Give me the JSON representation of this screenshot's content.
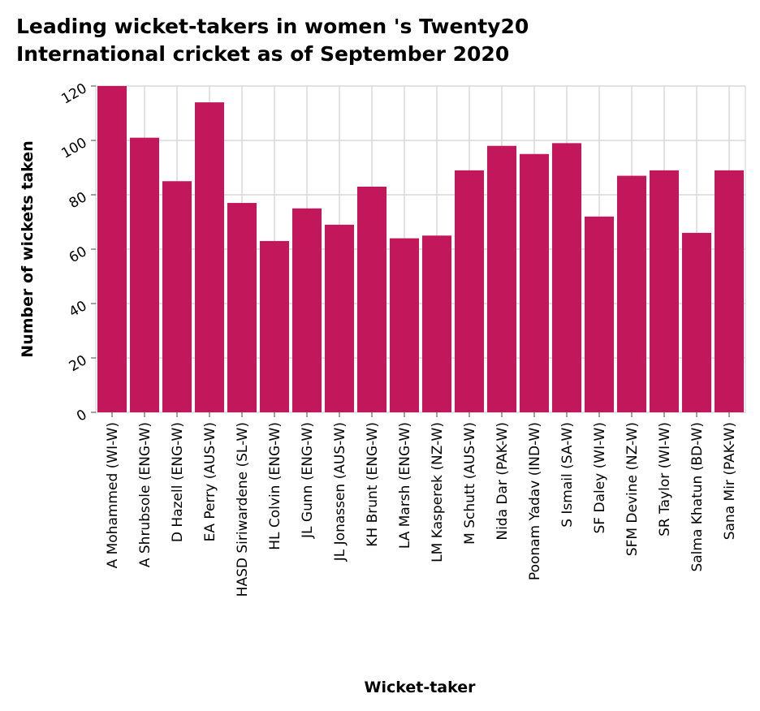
{
  "chart_data": {
    "type": "bar",
    "title_lines": [
      "Leading wicket-takers in women 's Twenty20",
      "International cricket as of September 2020"
    ],
    "xlabel": "Wicket-taker",
    "ylabel": "Number of wickets taken",
    "ylim": [
      0,
      120
    ],
    "yticks": [
      "0",
      "20",
      "40",
      "60",
      "80",
      "100",
      "120"
    ],
    "grid": true,
    "bar_color": "#c2185b",
    "categories": [
      "A Mohammed (WI-W)",
      "A Shrubsole (ENG-W)",
      "D Hazell (ENG-W)",
      "EA Perry (AUS-W)",
      "HASD Siriwardene (SL-W)",
      "HL Colvin (ENG-W)",
      "JL Gunn (ENG-W)",
      "JL Jonassen (AUS-W)",
      "KH Brunt (ENG-W)",
      "LA Marsh (ENG-W)",
      "LM Kasperek (NZ-W)",
      "M Schutt (AUS-W)",
      "Nida Dar (PAK-W)",
      "Poonam Yadav (IND-W)",
      "S Ismail (SA-W)",
      "SF Daley (WI-W)",
      "SFM Devine (NZ-W)",
      "SR Taylor (WI-W)",
      "Salma Khatun (BD-W)",
      "Sana Mir (PAK-W)"
    ],
    "values": [
      120,
      101,
      85,
      114,
      77,
      63,
      75,
      69,
      83,
      64,
      65,
      89,
      98,
      95,
      99,
      72,
      87,
      89,
      66,
      89
    ]
  }
}
